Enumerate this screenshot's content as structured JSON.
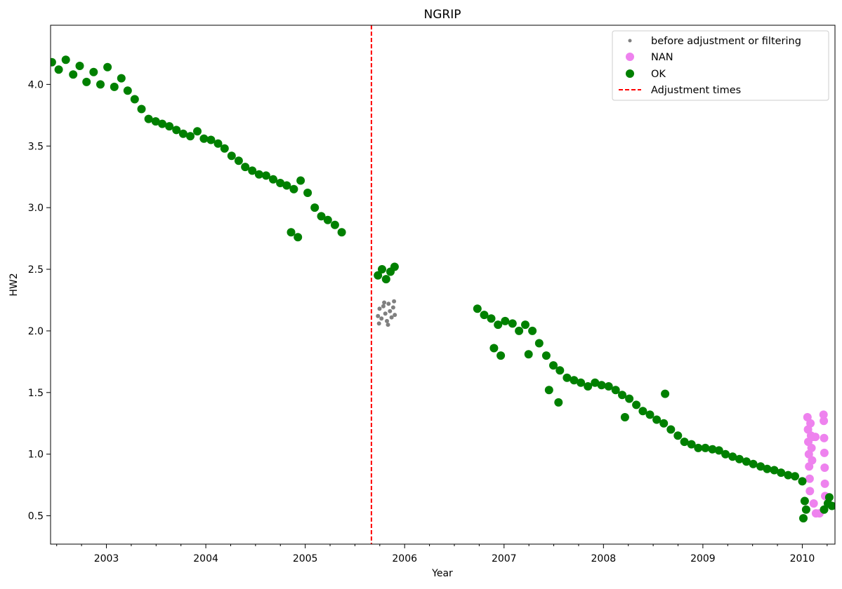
{
  "chart_data": {
    "type": "scatter",
    "title": "NGRIP",
    "xlabel": "Year",
    "ylabel": "HW2",
    "xlim": [
      "2002-06-10",
      "2010-05-01"
    ],
    "ylim": [
      0.27,
      4.48
    ],
    "grid": false,
    "legend_position": "top-right",
    "xticks": [
      "2003",
      "2004",
      "2005",
      "2006",
      "2007",
      "2008",
      "2009",
      "2010"
    ],
    "yticks": [
      "0.5",
      "1.0",
      "1.5",
      "2.0",
      "2.5",
      "3.0",
      "3.5",
      "4.0"
    ],
    "colors": {
      "before": "#808080",
      "nan": "#ee82ee",
      "ok": "#008000",
      "adjustment": "#ff0000"
    },
    "series": [
      {
        "name": "before adjustment or filtering",
        "marker": "small-dot",
        "points": [
          [
            "2005-09-25",
            2.12
          ],
          [
            "2005-10-01",
            2.18
          ],
          [
            "2005-10-08",
            2.1
          ],
          [
            "2005-10-15",
            2.2
          ],
          [
            "2005-10-22",
            2.14
          ],
          [
            "2005-10-28",
            2.08
          ],
          [
            "2005-11-03",
            2.22
          ],
          [
            "2005-11-08",
            2.16
          ],
          [
            "2005-11-14",
            2.11
          ],
          [
            "2005-11-20",
            2.19
          ],
          [
            "2005-11-26",
            2.13
          ],
          [
            "2005-09-29",
            2.06
          ],
          [
            "2005-10-18",
            2.23
          ],
          [
            "2005-11-01",
            2.05
          ],
          [
            "2005-11-23",
            2.24
          ]
        ]
      },
      {
        "name": "NAN",
        "marker": "dot",
        "points": [
          [
            "2010-01-20",
            1.3
          ],
          [
            "2010-01-22",
            1.2
          ],
          [
            "2010-01-23",
            1.1
          ],
          [
            "2010-01-25",
            1.0
          ],
          [
            "2010-01-26",
            0.9
          ],
          [
            "2010-01-28",
            0.8
          ],
          [
            "2010-01-29",
            0.7
          ],
          [
            "2010-01-31",
            1.25
          ],
          [
            "2010-02-02",
            1.15
          ],
          [
            "2010-02-04",
            1.05
          ],
          [
            "2010-02-06",
            0.95
          ],
          [
            "2010-02-08",
            1.14
          ],
          [
            "2010-02-12",
            0.6
          ],
          [
            "2010-02-18",
            1.14
          ],
          [
            "2010-02-20",
            0.52
          ],
          [
            "2010-03-05",
            0.52
          ],
          [
            "2010-03-20",
            1.32
          ],
          [
            "2010-03-21",
            1.27
          ],
          [
            "2010-03-22",
            1.13
          ],
          [
            "2010-03-23",
            1.01
          ],
          [
            "2010-03-24",
            0.89
          ],
          [
            "2010-03-25",
            0.76
          ],
          [
            "2010-03-26",
            0.66
          ]
        ]
      },
      {
        "name": "OK",
        "marker": "dot",
        "points": [
          [
            "2002-06-15",
            4.18
          ],
          [
            "2002-07-10",
            4.12
          ],
          [
            "2002-08-05",
            4.2
          ],
          [
            "2002-09-01",
            4.08
          ],
          [
            "2002-09-25",
            4.15
          ],
          [
            "2002-10-20",
            4.02
          ],
          [
            "2002-11-15",
            4.1
          ],
          [
            "2002-12-10",
            4.0
          ],
          [
            "2003-01-05",
            4.14
          ],
          [
            "2003-01-30",
            3.98
          ],
          [
            "2003-02-25",
            4.05
          ],
          [
            "2003-03-20",
            3.95
          ],
          [
            "2003-04-15",
            3.88
          ],
          [
            "2003-05-10",
            3.8
          ],
          [
            "2003-06-05",
            3.72
          ],
          [
            "2003-07-01",
            3.7
          ],
          [
            "2003-07-25",
            3.68
          ],
          [
            "2003-08-20",
            3.66
          ],
          [
            "2003-09-15",
            3.63
          ],
          [
            "2003-10-10",
            3.6
          ],
          [
            "2003-11-05",
            3.58
          ],
          [
            "2003-12-01",
            3.62
          ],
          [
            "2003-12-25",
            3.56
          ],
          [
            "2004-01-20",
            3.55
          ],
          [
            "2004-02-15",
            3.52
          ],
          [
            "2004-03-10",
            3.48
          ],
          [
            "2004-04-05",
            3.42
          ],
          [
            "2004-05-01",
            3.38
          ],
          [
            "2004-05-25",
            3.33
          ],
          [
            "2004-06-20",
            3.3
          ],
          [
            "2004-07-15",
            3.27
          ],
          [
            "2004-08-10",
            3.26
          ],
          [
            "2004-09-05",
            3.23
          ],
          [
            "2004-10-01",
            3.2
          ],
          [
            "2004-10-25",
            3.18
          ],
          [
            "2004-11-20",
            3.15
          ],
          [
            "2004-12-15",
            3.22
          ],
          [
            "2005-01-10",
            3.12
          ],
          [
            "2005-02-05",
            3.0
          ],
          [
            "2005-03-01",
            2.93
          ],
          [
            "2005-03-25",
            2.9
          ],
          [
            "2005-04-20",
            2.86
          ],
          [
            "2005-05-15",
            2.8
          ],
          [
            "2004-11-10",
            2.8
          ],
          [
            "2004-12-05",
            2.76
          ],
          [
            "2005-09-25",
            2.45
          ],
          [
            "2005-10-10",
            2.5
          ],
          [
            "2005-10-25",
            2.42
          ],
          [
            "2005-11-10",
            2.48
          ],
          [
            "2005-11-25",
            2.52
          ],
          [
            "2006-09-25",
            2.18
          ],
          [
            "2006-10-20",
            2.13
          ],
          [
            "2006-11-15",
            2.1
          ],
          [
            "2006-12-10",
            2.05
          ],
          [
            "2007-01-05",
            2.08
          ],
          [
            "2007-02-01",
            2.06
          ],
          [
            "2007-02-25",
            2.0
          ],
          [
            "2007-03-20",
            2.05
          ],
          [
            "2007-04-15",
            2.0
          ],
          [
            "2007-05-10",
            1.9
          ],
          [
            "2007-06-05",
            1.8
          ],
          [
            "2007-07-01",
            1.72
          ],
          [
            "2007-07-25",
            1.68
          ],
          [
            "2007-08-20",
            1.62
          ],
          [
            "2007-09-15",
            1.6
          ],
          [
            "2007-10-10",
            1.58
          ],
          [
            "2007-11-05",
            1.55
          ],
          [
            "2007-12-01",
            1.58
          ],
          [
            "2007-12-25",
            1.56
          ],
          [
            "2008-01-20",
            1.55
          ],
          [
            "2008-02-15",
            1.52
          ],
          [
            "2008-03-10",
            1.48
          ],
          [
            "2008-04-05",
            1.45
          ],
          [
            "2008-05-01",
            1.4
          ],
          [
            "2008-05-25",
            1.35
          ],
          [
            "2008-06-20",
            1.32
          ],
          [
            "2008-07-15",
            1.28
          ],
          [
            "2008-08-10",
            1.25
          ],
          [
            "2008-09-05",
            1.2
          ],
          [
            "2008-10-01",
            1.15
          ],
          [
            "2008-10-25",
            1.1
          ],
          [
            "2008-11-20",
            1.08
          ],
          [
            "2008-12-15",
            1.05
          ],
          [
            "2009-01-10",
            1.05
          ],
          [
            "2009-02-05",
            1.04
          ],
          [
            "2009-03-01",
            1.03
          ],
          [
            "2009-03-25",
            1.0
          ],
          [
            "2009-04-20",
            0.98
          ],
          [
            "2009-05-15",
            0.96
          ],
          [
            "2009-06-10",
            0.94
          ],
          [
            "2009-07-05",
            0.92
          ],
          [
            "2009-08-01",
            0.9
          ],
          [
            "2009-08-25",
            0.88
          ],
          [
            "2009-09-20",
            0.87
          ],
          [
            "2009-10-15",
            0.85
          ],
          [
            "2009-11-10",
            0.83
          ],
          [
            "2009-12-05",
            0.82
          ],
          [
            "2010-01-01",
            0.78
          ],
          [
            "2010-01-10",
            0.62
          ],
          [
            "2010-01-15",
            0.55
          ],
          [
            "2010-01-05",
            0.48
          ],
          [
            "2006-12-20",
            1.8
          ],
          [
            "2006-11-25",
            1.86
          ],
          [
            "2007-04-01",
            1.81
          ],
          [
            "2007-06-15",
            1.52
          ],
          [
            "2007-07-20",
            1.42
          ],
          [
            "2008-08-15",
            1.49
          ],
          [
            "2008-03-20",
            1.3
          ],
          [
            "2010-03-22",
            0.55
          ],
          [
            "2010-04-05",
            0.6
          ],
          [
            "2010-04-20",
            0.58
          ],
          [
            "2010-04-10",
            0.65
          ]
        ]
      }
    ],
    "adjustment_times": [
      "2005-09-01"
    ],
    "adjustment_label": "Adjustment times"
  }
}
